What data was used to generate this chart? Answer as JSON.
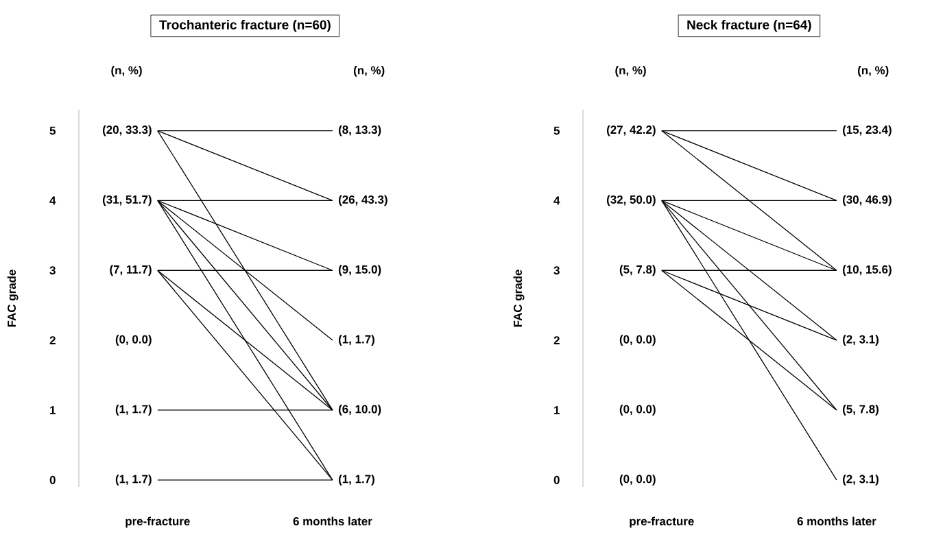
{
  "chart_data": [
    {
      "type": "line",
      "title": "Trochanteric fracture (n=60)",
      "ylabel": "FAC grade",
      "categories": [
        "pre-fracture",
        "6 months later"
      ],
      "ylim": [
        -0.1,
        5.3
      ],
      "yticks": [
        0,
        1,
        2,
        3,
        4,
        5
      ],
      "marker": "none",
      "line_style": "solid",
      "series": [
        {
          "color": "#000000",
          "values": [
            5,
            5
          ]
        },
        {
          "color": "#000000",
          "values": [
            5,
            4
          ]
        },
        {
          "color": "#000000",
          "values": [
            5,
            1
          ]
        },
        {
          "color": "#000000",
          "values": [
            4,
            4
          ]
        },
        {
          "color": "#000000",
          "values": [
            4,
            3
          ]
        },
        {
          "color": "#000000",
          "values": [
            4,
            2
          ]
        },
        {
          "color": "#000000",
          "values": [
            4,
            1
          ]
        },
        {
          "color": "#000000",
          "values": [
            4,
            0
          ]
        },
        {
          "color": "#000000",
          "values": [
            3,
            3
          ]
        },
        {
          "color": "#000000",
          "values": [
            3,
            1
          ]
        },
        {
          "color": "#000000",
          "values": [
            3,
            0
          ]
        },
        {
          "color": "#000000",
          "values": [
            1,
            1
          ]
        },
        {
          "color": "#000000",
          "values": [
            0,
            0
          ]
        }
      ],
      "annotations": [
        "(n, %)",
        "(n, %)",
        {
          "text": "(20, 33.3)",
          "x": "pre-fracture",
          "y": 5
        },
        {
          "text": "(31, 51.7)",
          "x": "pre-fracture",
          "y": 4
        },
        {
          "text": "(7, 11.7)",
          "x": "pre-fracture",
          "y": 3
        },
        "(0, 0.0)",
        {
          "text": "(1, 1.7)",
          "x": "pre-fracture",
          "y": 1
        },
        {
          "text": "(1, 1.7)",
          "x": "pre-fracture",
          "y": 0
        },
        {
          "text": "(8, 13.3)",
          "x": "6 months later",
          "y": 5
        },
        {
          "text": "(26, 43.3)",
          "x": "6 months later",
          "y": 4
        },
        {
          "text": "(9, 15.0)",
          "x": "6 months later",
          "y": 3
        },
        {
          "text": "(1, 1.7)",
          "x": "6 months later",
          "y": 2
        },
        {
          "text": "(6, 10.0)",
          "x": "6 months later",
          "y": 1
        },
        {
          "text": "(1, 1.7)",
          "x": "6 months later",
          "y": 0
        }
      ]
    },
    {
      "type": "line",
      "title": "Neck fracture (n=64)",
      "ylabel": "FAC grade",
      "categories": [
        "pre-fracture",
        "6 months later"
      ],
      "ylim": [
        -0.1,
        5.3
      ],
      "yticks": [
        0,
        1,
        2,
        3,
        4,
        5
      ],
      "marker": "none",
      "line_style": "solid",
      "series": [
        {
          "color": "#000000",
          "values": [
            5,
            5
          ]
        },
        {
          "color": "#000000",
          "values": [
            5,
            4
          ]
        },
        {
          "color": "#000000",
          "values": [
            5,
            3
          ]
        },
        {
          "color": "#000000",
          "values": [
            4,
            4
          ]
        },
        {
          "color": "#000000",
          "values": [
            4,
            3
          ]
        },
        {
          "color": "#000000",
          "values": [
            4,
            2
          ]
        },
        {
          "color": "#000000",
          "values": [
            4,
            1
          ]
        },
        {
          "color": "#000000",
          "values": [
            4,
            0
          ]
        },
        {
          "color": "#000000",
          "values": [
            3,
            3
          ]
        },
        {
          "color": "#000000",
          "values": [
            3,
            2
          ]
        },
        {
          "color": "#000000",
          "values": [
            3,
            1
          ]
        }
      ],
      "annotations": [
        "(n, %)",
        "(n, %)",
        {
          "text": "(27, 42.2)",
          "x": "pre-fracture",
          "y": 5
        },
        {
          "text": "(32, 50.0)",
          "x": "pre-fracture",
          "y": 4
        },
        {
          "text": "(5, 7.8)",
          "x": "pre-fracture",
          "y": 3
        },
        "(0, 0.0)",
        "(0, 0.0)",
        "(0, 0.0)",
        {
          "text": "(15, 23.4)",
          "x": "6 months later",
          "y": 5
        },
        {
          "text": "(30, 46.9)",
          "x": "6 months later",
          "y": 4
        },
        {
          "text": "(10, 15.6)",
          "x": "6 months later",
          "y": 3
        },
        {
          "text": "(2, 3.1)",
          "x": "6 months later",
          "y": 2
        },
        {
          "text": "(5, 7.8)",
          "x": "6 months later",
          "y": 1
        },
        {
          "text": "(2, 3.1)",
          "x": "6 months later",
          "y": 0
        }
      ]
    }
  ]
}
